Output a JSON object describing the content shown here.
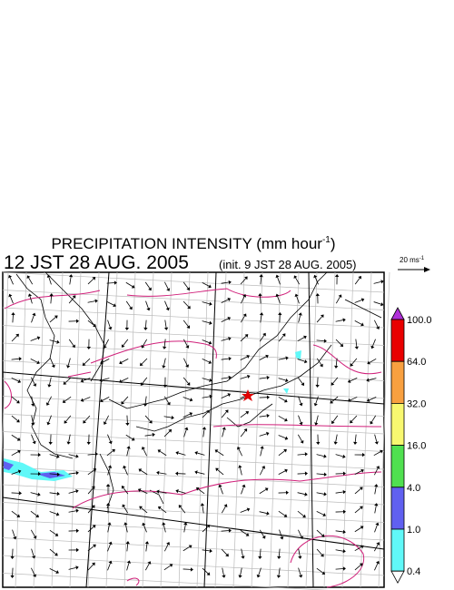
{
  "header": {
    "title": {
      "text": "PRECIPITATION INTENSITY (mm hour",
      "superscript": "-1",
      "close": ")"
    },
    "time": "12 JST 28 AUG. 2005",
    "init": "(init. 9 JST 28 AUG. 2005)"
  },
  "scale": {
    "text": "20 ms",
    "superscript": "-1"
  },
  "colorbar": {
    "over_color": "#b030d8",
    "under_color": "#ffffff",
    "levels": [
      {
        "label": "100.0",
        "color": "#e80000"
      },
      {
        "label": "64.0",
        "color": "#f8a040"
      },
      {
        "label": "32.0",
        "color": "#f8f870"
      },
      {
        "label": "16.0",
        "color": "#50e050"
      },
      {
        "label": "4.0",
        "color": "#6060f0"
      },
      {
        "label": "1.0",
        "color": "#60f8f8"
      },
      {
        "label": "0.4",
        "color": null
      }
    ]
  }
}
